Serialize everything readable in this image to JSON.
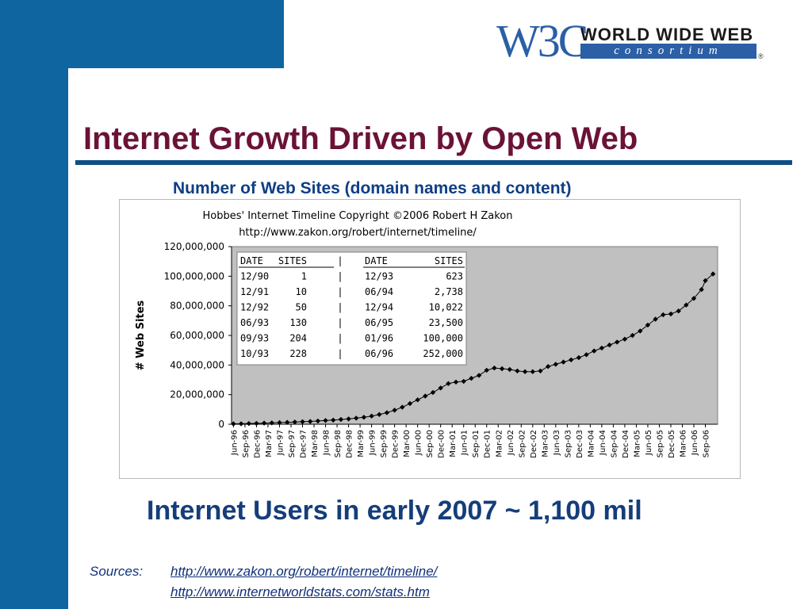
{
  "logo": {
    "mark": "W3C",
    "line1": "WORLD WIDE WEB",
    "line2": "consortium",
    "registered": "®"
  },
  "slide": {
    "title": "Internet Growth Driven by Open Web",
    "chart_heading": "Number of Web Sites (domain names and content)",
    "users_statement": "Internet Users in early 2007 ~ 1,100 mil",
    "sources_label": "Sources:",
    "sources": [
      "http://www.zakon.org/robert/internet/timeline/",
      "http://www.internetworldstats.com/stats.htm"
    ]
  },
  "colors": {
    "band": "#0f65a0",
    "title": "#6b1237",
    "plot_bg": "#c0c0c0",
    "marker": "#000000"
  },
  "chart_data": {
    "type": "line",
    "title": "Hobbes' Internet Timeline Copyright ©2006 Robert H Zakon",
    "subtitle": "http://www.zakon.org/robert/internet/timeline/",
    "ylabel": "# Web Sites",
    "xlabel": "",
    "ylim": [
      0,
      120000000
    ],
    "yticks": [
      0,
      20000000,
      40000000,
      60000000,
      80000000,
      100000000,
      120000000
    ],
    "ytick_labels": [
      "0",
      "20,000,000",
      "40,000,000",
      "60,000,000",
      "80,000,000",
      "100,000,000",
      "120,000,000"
    ],
    "grid": false,
    "plot_background": "#c0c0c0",
    "x_dates": [
      "Jun-96",
      "Sep-96",
      "Dec-96",
      "Mar-97",
      "Jun-97",
      "Sep-97",
      "Dec-97",
      "Mar-98",
      "Jun-98",
      "Sep-98",
      "Dec-98",
      "Mar-99",
      "Jun-99",
      "Sep-99",
      "Dec-99",
      "Mar-00",
      "Jun-00",
      "Sep-00",
      "Dec-00",
      "Mar-01",
      "Jun-01",
      "Sep-01",
      "Dec-01",
      "Mar-02",
      "Jun-02",
      "Sep-02",
      "Dec-02",
      "Mar-03",
      "Jun-03",
      "Sep-03",
      "Dec-03",
      "Mar-04",
      "Jun-04",
      "Sep-04",
      "Dec-04",
      "Mar-05",
      "Jun-05",
      "Sep-05",
      "Dec-05",
      "Mar-06",
      "Jun-06",
      "Sep-06"
    ],
    "series": [
      {
        "marker": "diamond",
        "points": [
          [
            "Jun-96",
            250000
          ],
          [
            "Aug-96",
            340000
          ],
          [
            "Oct-96",
            460000
          ],
          [
            "Dec-96",
            600000
          ],
          [
            "Feb-97",
            750000
          ],
          [
            "Apr-97",
            900000
          ],
          [
            "Jun-97",
            1100000
          ],
          [
            "Aug-97",
            1300000
          ],
          [
            "Oct-97",
            1500000
          ],
          [
            "Dec-97",
            1700000
          ],
          [
            "Feb-98",
            1900000
          ],
          [
            "Apr-98",
            2200000
          ],
          [
            "Jun-98",
            2500000
          ],
          [
            "Aug-98",
            2800000
          ],
          [
            "Oct-98",
            3200000
          ],
          [
            "Dec-98",
            3600000
          ],
          [
            "Feb-99",
            4100000
          ],
          [
            "Apr-99",
            4700000
          ],
          [
            "Jun-99",
            5500000
          ],
          [
            "Aug-99",
            6600000
          ],
          [
            "Oct-99",
            7800000
          ],
          [
            "Dec-99",
            9500000
          ],
          [
            "Feb-00",
            11500000
          ],
          [
            "Apr-00",
            14000000
          ],
          [
            "Jun-00",
            16500000
          ],
          [
            "Aug-00",
            19000000
          ],
          [
            "Oct-00",
            21500000
          ],
          [
            "Dec-00",
            24500000
          ],
          [
            "Feb-01",
            27500000
          ],
          [
            "Apr-01",
            28500000
          ],
          [
            "Jun-01",
            29000000
          ],
          [
            "Aug-01",
            31000000
          ],
          [
            "Oct-01",
            33000000
          ],
          [
            "Dec-01",
            36500000
          ],
          [
            "Feb-02",
            38000000
          ],
          [
            "Apr-02",
            37500000
          ],
          [
            "Jun-02",
            37000000
          ],
          [
            "Aug-02",
            36000000
          ],
          [
            "Oct-02",
            35500000
          ],
          [
            "Dec-02",
            35500000
          ],
          [
            "Feb-03",
            36000000
          ],
          [
            "Apr-03",
            39000000
          ],
          [
            "Jun-03",
            40500000
          ],
          [
            "Aug-03",
            42000000
          ],
          [
            "Oct-03",
            43500000
          ],
          [
            "Dec-03",
            45000000
          ],
          [
            "Feb-04",
            47000000
          ],
          [
            "Apr-04",
            49500000
          ],
          [
            "Jun-04",
            51500000
          ],
          [
            "Aug-04",
            53500000
          ],
          [
            "Oct-04",
            55500000
          ],
          [
            "Dec-04",
            57500000
          ],
          [
            "Feb-05",
            60000000
          ],
          [
            "Apr-05",
            63000000
          ],
          [
            "Jun-05",
            67000000
          ],
          [
            "Aug-05",
            71000000
          ],
          [
            "Oct-05",
            74000000
          ],
          [
            "Dec-05",
            74500000
          ],
          [
            "Feb-06",
            76500000
          ],
          [
            "Apr-06",
            80500000
          ],
          [
            "Jun-06",
            85000000
          ],
          [
            "Aug-06",
            91000000
          ],
          [
            "Sep-06",
            97000000
          ],
          [
            "Nov-06",
            101500000
          ]
        ]
      }
    ],
    "inset_table": {
      "columns": [
        "DATE",
        "SITES",
        "|",
        "DATE",
        "SITES"
      ],
      "rows": [
        [
          "12/90",
          "1",
          "|",
          "12/93",
          "623"
        ],
        [
          "12/91",
          "10",
          "|",
          "06/94",
          "2,738"
        ],
        [
          "12/92",
          "50",
          "|",
          "12/94",
          "10,022"
        ],
        [
          "06/93",
          "130",
          "|",
          "06/95",
          "23,500"
        ],
        [
          "09/93",
          "204",
          "|",
          "01/96",
          "100,000"
        ],
        [
          "10/93",
          "228",
          "|",
          "06/96",
          "252,000"
        ]
      ]
    }
  }
}
